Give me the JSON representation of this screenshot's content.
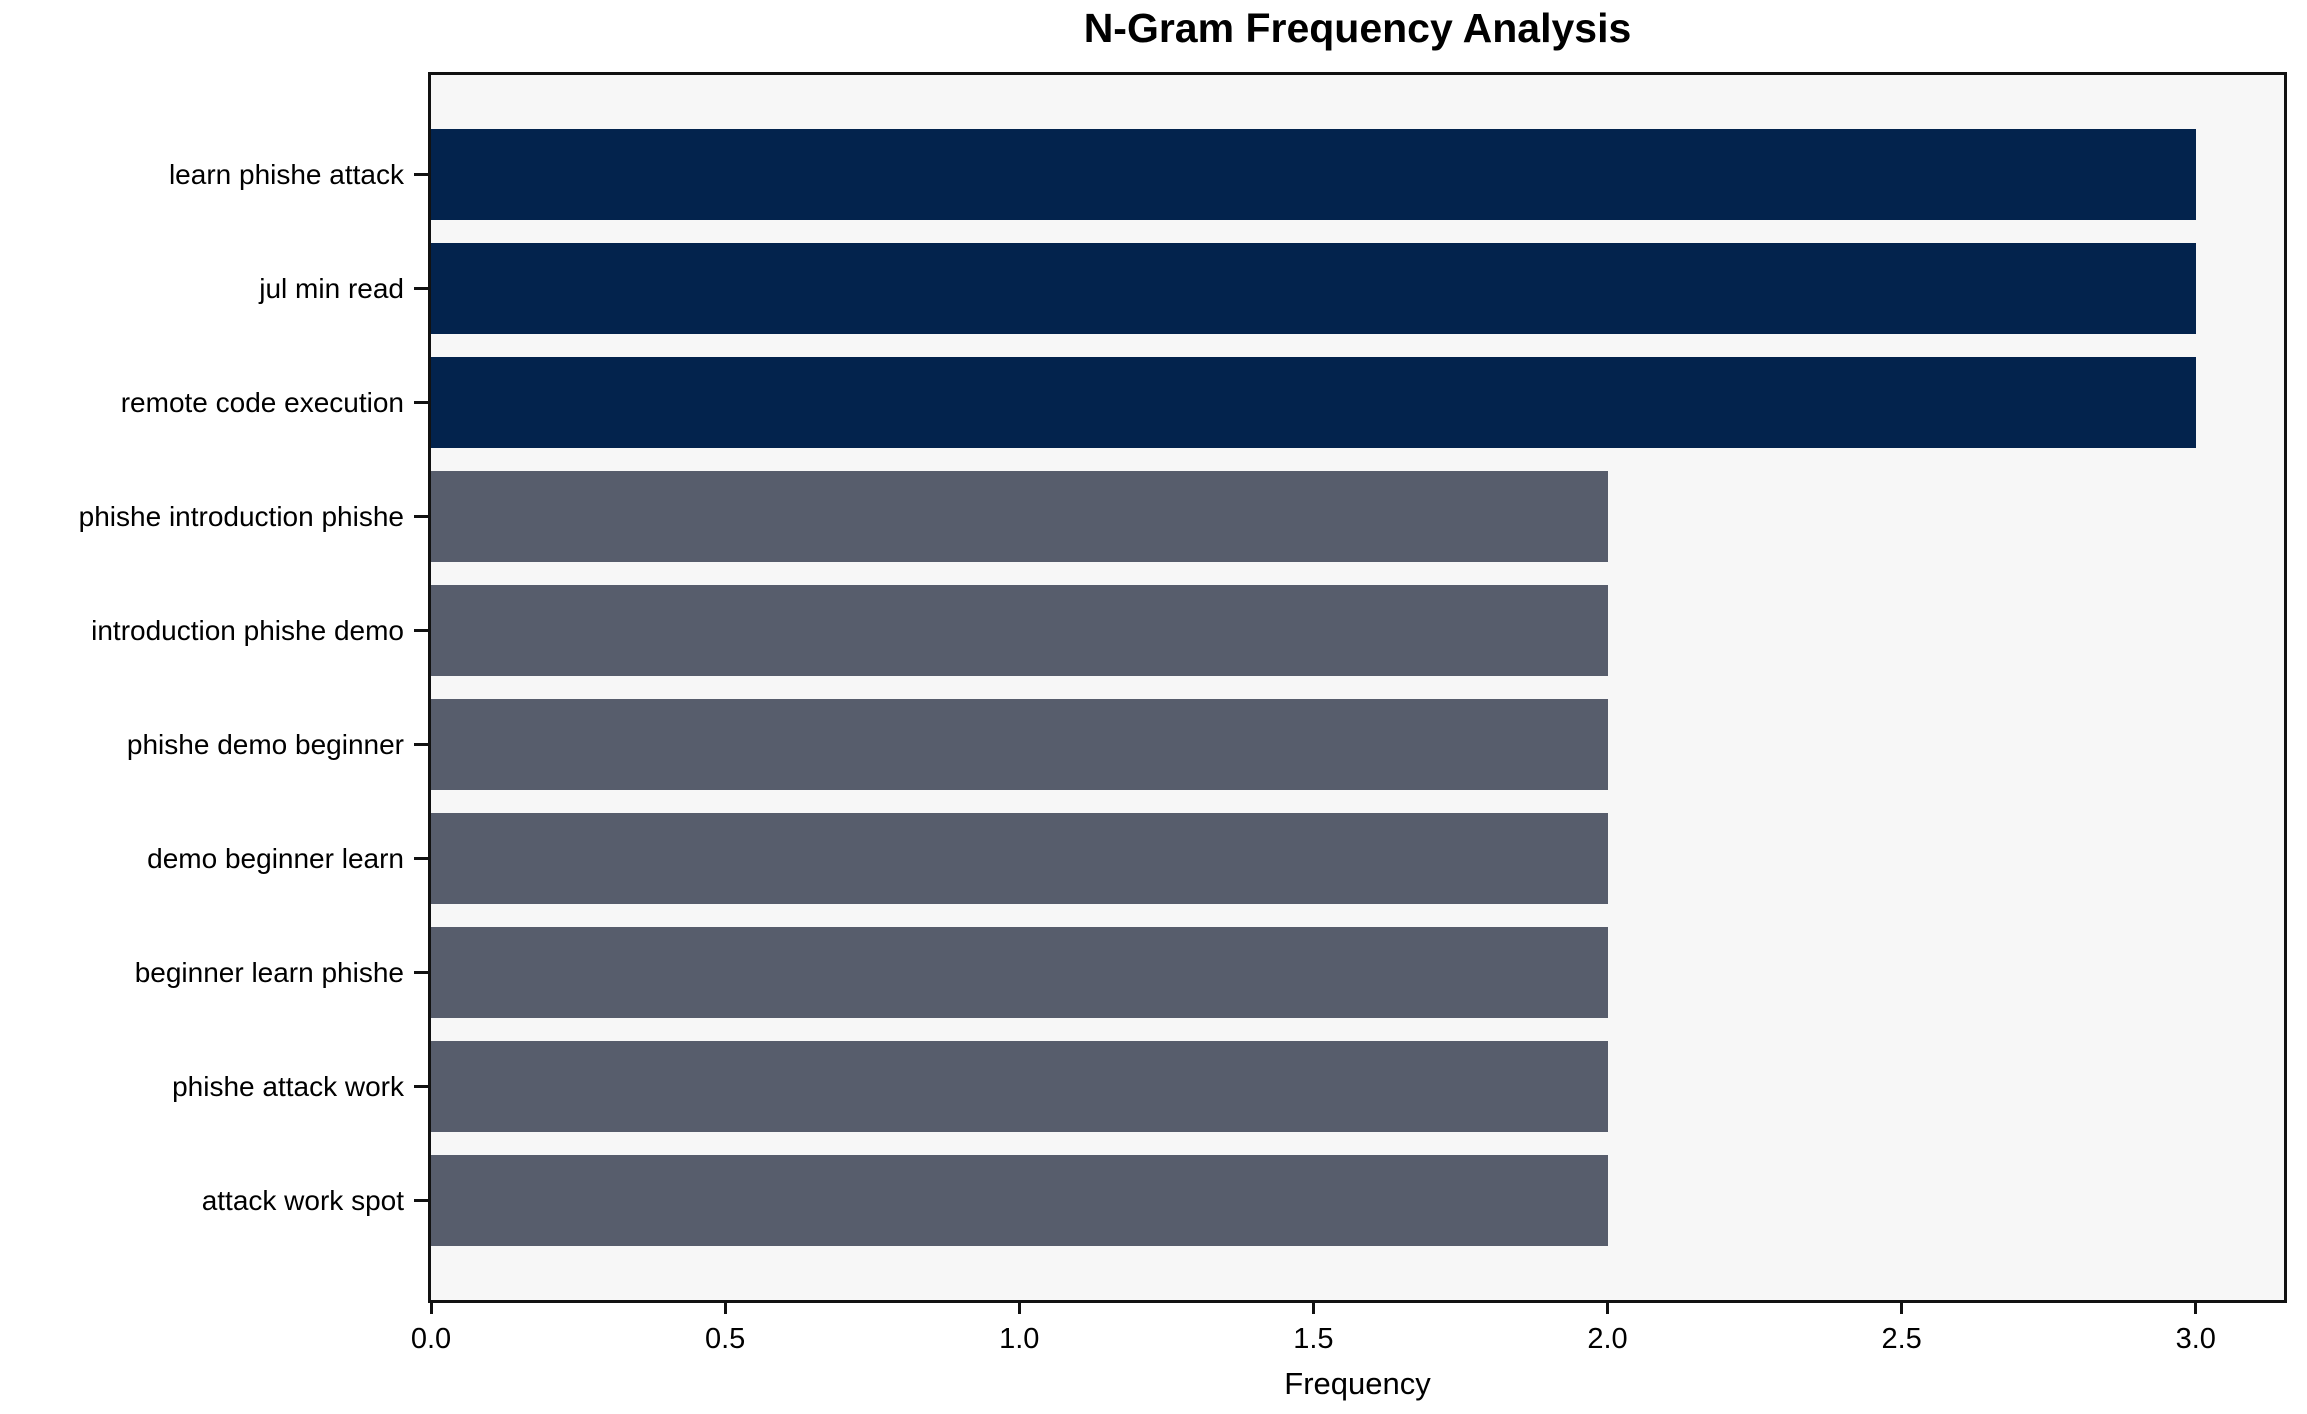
{
  "chart_data": {
    "type": "bar",
    "orientation": "horizontal",
    "title": "N-Gram Frequency Analysis",
    "xlabel": "Frequency",
    "ylabel": "",
    "categories": [
      "learn phishe attack",
      "jul min read",
      "remote code execution",
      "phishe introduction phishe",
      "introduction phishe demo",
      "phishe demo beginner",
      "demo beginner learn",
      "beginner learn phishe",
      "phishe attack work",
      "attack work spot"
    ],
    "values": [
      3,
      3,
      3,
      2,
      2,
      2,
      2,
      2,
      2,
      2
    ],
    "bar_colors": [
      "#03234d",
      "#03234d",
      "#03234d",
      "#575d6c",
      "#575d6c",
      "#575d6c",
      "#575d6c",
      "#575d6c",
      "#575d6c",
      "#575d6c"
    ],
    "xlim": [
      0,
      3.15
    ],
    "xtick_values": [
      0,
      0.5,
      1,
      1.5,
      2,
      2.5,
      3
    ],
    "xtick_labels": [
      "0.0",
      "0.5",
      "1.0",
      "1.5",
      "2.0",
      "2.5",
      "3.0"
    ],
    "grid": false,
    "legend_position": "none",
    "colors": {
      "highlight_bar": "#03234d",
      "regular_bar": "#575d6c",
      "plot_background": "#f7f7f7",
      "figure_background": "#ffffff",
      "spine": "#111111",
      "text": "#000000"
    }
  }
}
